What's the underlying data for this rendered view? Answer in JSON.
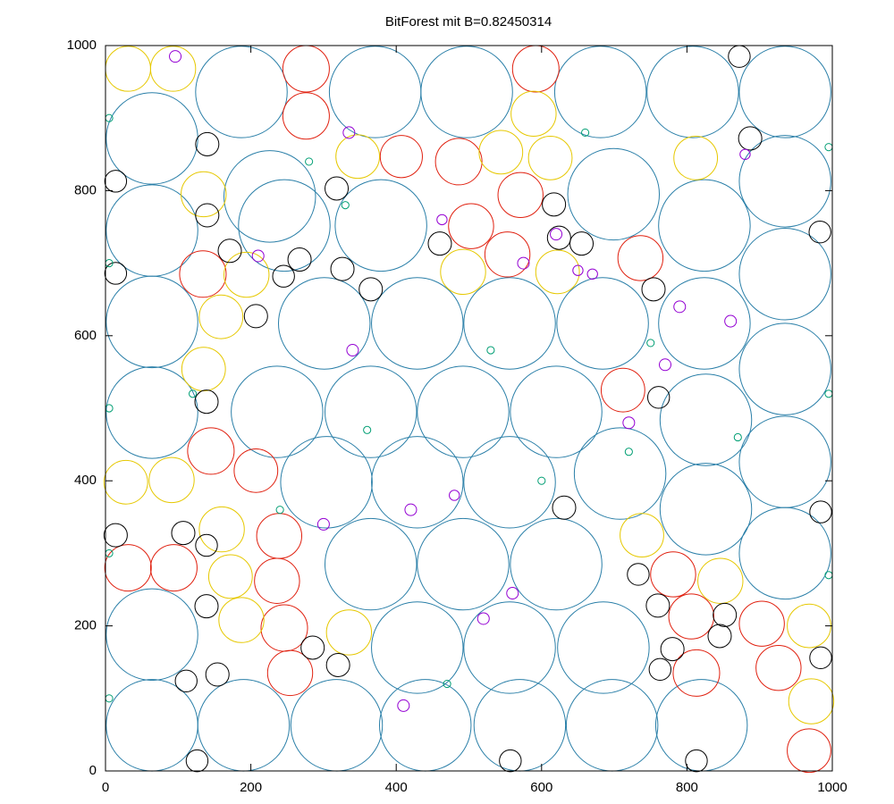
{
  "chart_data": {
    "type": "bubble",
    "title": "BitForest mit B=0.82450314",
    "xlim": [
      0,
      1000
    ],
    "ylim": [
      0,
      1000
    ],
    "xticks": [
      0,
      200,
      400,
      600,
      800,
      1000
    ],
    "yticks": [
      0,
      200,
      400,
      600,
      800,
      1000
    ],
    "series": [
      {
        "color": "#2a7fa8",
        "x": [
          64,
          190,
          318,
          440,
          570,
          697,
          820,
          64,
          429,
          556,
          685,
          365,
          492,
          620,
          304,
          429,
          556,
          708,
          935,
          935,
          935,
          935,
          935,
          935,
          236,
          365,
          492,
          620,
          826,
          826,
          301,
          429,
          556,
          684,
          824,
          64,
          64,
          64,
          64,
          246,
          379,
          699,
          824,
          187,
          371,
          497,
          681,
          808,
          226
        ],
        "values": [
          63,
          63,
          63,
          63,
          63,
          63,
          63,
          188,
          170,
          170,
          170,
          285,
          285,
          285,
          398,
          398,
          398,
          410,
          300,
          426,
          554,
          685,
          813,
          936,
          495,
          495,
          495,
          495,
          484,
          361,
          617,
          617,
          617,
          617,
          617,
          619,
          494,
          745,
          872,
          752,
          752,
          795,
          752,
          936,
          936,
          936,
          936,
          936,
          792
        ],
        "sizes": [
          63,
          63,
          63,
          63,
          63,
          63,
          63,
          63,
          63,
          63,
          63,
          63,
          63,
          63,
          63,
          63,
          63,
          63,
          63,
          63,
          63,
          63,
          63,
          63,
          63,
          63,
          63,
          63,
          63,
          63,
          63,
          63,
          63,
          63,
          63,
          63,
          63,
          63,
          63,
          63,
          63,
          63,
          63,
          63,
          63,
          63,
          63,
          63,
          63
        ]
      },
      {
        "color": "#e0200f",
        "x": [
          276,
          276,
          407,
          486,
          592,
          571,
          503,
          553,
          736,
          134,
          145,
          207,
          31,
          94,
          239,
          236,
          246,
          254,
          781,
          806,
          813,
          903,
          926,
          968,
          712
        ],
        "values": [
          968,
          903,
          847,
          840,
          968,
          794,
          751,
          712,
          707,
          685,
          441,
          414,
          280,
          280,
          324,
          262,
          197,
          135,
          271,
          213,
          135,
          203,
          142,
          28,
          525
        ],
        "sizes": [
          32,
          32,
          29,
          32,
          32,
          31,
          31,
          31,
          31,
          32,
          32,
          30,
          32,
          32,
          31,
          31,
          32,
          31,
          31,
          31,
          32,
          31,
          31,
          30,
          30
        ]
      },
      {
        "color": "#e6c800",
        "x": [
          31,
          93,
          135,
          159,
          135,
          160,
          172,
          187,
          28,
          91,
          544,
          612,
          589,
          622,
          812,
          738,
          846,
          335,
          968,
          971,
          492,
          347,
          194
        ],
        "values": [
          968,
          968,
          795,
          626,
          554,
          333,
          268,
          208,
          398,
          401,
          853,
          845,
          906,
          688,
          845,
          325,
          262,
          191,
          200,
          96,
          688,
          847,
          684
        ],
        "sizes": [
          31,
          31,
          31,
          30,
          30,
          31,
          30,
          31,
          30,
          31,
          30,
          30,
          31,
          30,
          30,
          30,
          31,
          31,
          30,
          31,
          31,
          30,
          31
        ]
      },
      {
        "color": "#000000",
        "x": [
          872,
          887,
          140,
          14,
          318,
          140,
          171,
          267,
          245,
          326,
          365,
          460,
          624,
          655,
          617,
          754,
          983,
          14,
          207,
          139,
          761,
          631,
          984,
          14,
          107,
          139,
          139,
          733,
          760,
          852,
          845,
          780,
          763,
          984,
          285,
          320,
          154,
          111,
          126,
          557,
          813
        ],
        "values": [
          985,
          872,
          864,
          813,
          803,
          766,
          717,
          705,
          682,
          692,
          664,
          727,
          735,
          727,
          781,
          664,
          743,
          686,
          627,
          509,
          515,
          363,
          357,
          325,
          328,
          311,
          227,
          271,
          228,
          215,
          186,
          168,
          140,
          156,
          170,
          146,
          133,
          124,
          14,
          14,
          14
        ],
        "sizes": [
          15,
          16,
          16,
          15,
          16,
          16,
          16,
          16,
          15,
          16,
          16,
          16,
          16,
          16,
          16,
          16,
          15,
          15,
          16,
          16,
          15,
          16,
          15,
          16,
          16,
          15,
          16,
          15,
          16,
          16,
          16,
          16,
          15,
          15,
          16,
          16,
          16,
          15,
          15,
          15,
          15
        ]
      },
      {
        "color": "#9400d3",
        "x": [
          96,
          335,
          463,
          575,
          620,
          670,
          770,
          880,
          340,
          420,
          520,
          650,
          720,
          860,
          210,
          300,
          410,
          480,
          790,
          560
        ],
        "values": [
          985,
          880,
          760,
          700,
          740,
          685,
          560,
          850,
          580,
          360,
          210,
          690,
          480,
          620,
          710,
          340,
          90,
          380,
          640,
          245
        ],
        "sizes": [
          8,
          8,
          7,
          8,
          8,
          7,
          8,
          7,
          8,
          8,
          8,
          7,
          8,
          8,
          8,
          8,
          8,
          7,
          8,
          8
        ]
      },
      {
        "color": "#009e73",
        "x": [
          5,
          5,
          5,
          5,
          5,
          120,
          240,
          330,
          360,
          470,
          600,
          660,
          750,
          870,
          995,
          995,
          995,
          720,
          530,
          280
        ],
        "values": [
          900,
          700,
          500,
          300,
          100,
          520,
          360,
          780,
          470,
          120,
          400,
          880,
          590,
          460,
          860,
          520,
          270,
          440,
          580,
          840
        ],
        "sizes": [
          5,
          5,
          5,
          5,
          5,
          5,
          5,
          5,
          5,
          5,
          5,
          5,
          5,
          5,
          5,
          5,
          5,
          5,
          5,
          5
        ]
      }
    ]
  }
}
